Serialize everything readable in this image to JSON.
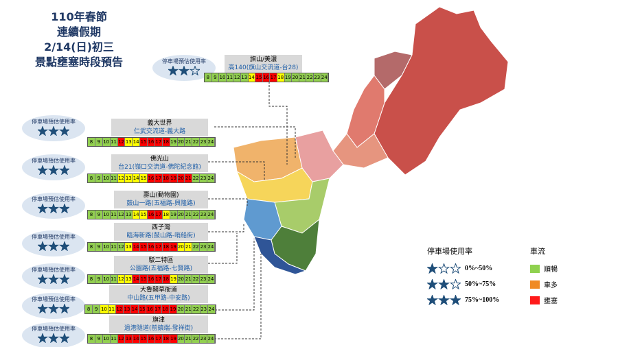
{
  "header": {
    "lines": [
      "110年春節",
      "連續假期",
      "2/14(日)初三",
      "景點壅塞時段預告"
    ]
  },
  "parking_badge_label": "停車場預估使用率",
  "hours": [
    8,
    9,
    10,
    11,
    12,
    13,
    14,
    15,
    16,
    17,
    18,
    19,
    20,
    21,
    22,
    23,
    24
  ],
  "cell_colors": [
    "#92d050",
    "#ffff00",
    "#ff0000"
  ],
  "spots": [
    {
      "name": "旗山/美濃",
      "route": "高140(旗山交流道-台28)",
      "stars": 2,
      "traffic": [
        0,
        0,
        0,
        0,
        0,
        0,
        1,
        2,
        2,
        2,
        1,
        0,
        0,
        0,
        0,
        0,
        0
      ]
    },
    {
      "name": "義大世界",
      "route": "仁武交流道-義大路",
      "stars": 3,
      "traffic": [
        0,
        0,
        0,
        0,
        2,
        1,
        1,
        2,
        2,
        2,
        2,
        0,
        0,
        0,
        0,
        0,
        0
      ]
    },
    {
      "name": "佛光山",
      "route": "台21(嶺口交流道-佛陀紀念館)",
      "stars": 3,
      "traffic": [
        0,
        0,
        0,
        0,
        1,
        1,
        1,
        1,
        2,
        2,
        2,
        2,
        2,
        2,
        0,
        0,
        0
      ]
    },
    {
      "name": "壽山(動物園)",
      "route": "鼓山一路(五福路-興隆路)",
      "stars": 3,
      "traffic": [
        0,
        0,
        0,
        0,
        0,
        0,
        1,
        1,
        2,
        2,
        1,
        0,
        0,
        0,
        0,
        0,
        0
      ]
    },
    {
      "name": "西子灣",
      "route": "臨海新路(鼓山路-哨船街)",
      "stars": 3,
      "traffic": [
        0,
        0,
        0,
        0,
        0,
        1,
        2,
        2,
        2,
        2,
        2,
        2,
        1,
        1,
        0,
        0,
        0
      ]
    },
    {
      "name": "駁二特區",
      "route": "公園路(五福路-七賢路)",
      "stars": 3,
      "traffic": [
        0,
        0,
        0,
        0,
        1,
        1,
        2,
        2,
        2,
        2,
        2,
        1,
        0,
        0,
        0,
        0,
        0
      ]
    },
    {
      "name": "大魯閣草衙道",
      "route": "中山路(五甲路-中安路)",
      "stars": 3,
      "traffic": [
        0,
        0,
        1,
        1,
        2,
        2,
        2,
        2,
        2,
        2,
        2,
        2,
        0,
        0,
        0,
        0,
        0
      ]
    },
    {
      "name": "旗津",
      "route": "過港隧道(前鎮端-發祥街)",
      "stars": 3,
      "traffic": [
        0,
        0,
        0,
        0,
        2,
        2,
        2,
        2,
        2,
        2,
        2,
        2,
        0,
        0,
        0,
        0,
        0
      ]
    }
  ],
  "legend": {
    "parking_title": "停車場使用率",
    "parking": [
      {
        "stars": 1,
        "label": "0%~50%"
      },
      {
        "stars": 2,
        "label": "50%~75%"
      },
      {
        "stars": 3,
        "label": "75%~100%"
      }
    ],
    "traffic_title": "車流",
    "traffic": [
      {
        "label": "順暢",
        "color": "#8fd14f"
      },
      {
        "label": "車多",
        "color": "#f08a24"
      },
      {
        "label": "壅塞",
        "color": "#ff1a1a"
      }
    ]
  }
}
